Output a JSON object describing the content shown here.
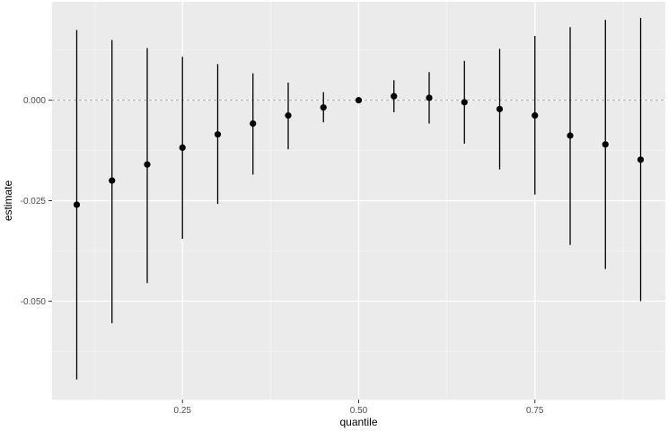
{
  "chart_data": {
    "type": "scatter",
    "subtype": "pointrange",
    "title": "",
    "xlabel": "quantile",
    "ylabel": "estimate",
    "xlim": [
      0.065,
      0.935
    ],
    "ylim": [
      -0.0745,
      0.0245
    ],
    "x_ticks": [
      0.25,
      0.5,
      0.75
    ],
    "x_tick_labels": [
      "0.25",
      "0.50",
      "0.75"
    ],
    "y_ticks": [
      -0.05,
      -0.025,
      0.0
    ],
    "y_tick_labels": [
      "-0.050",
      "-0.025",
      "0.000"
    ],
    "reference_line": {
      "y": 0.0,
      "style": "dashed",
      "color": "#a6a6a6"
    },
    "grid": true,
    "panel_background": "#ebebeb",
    "point_color": "#000000",
    "points": [
      {
        "x": 0.1,
        "y": -0.026,
        "ymin": -0.0695,
        "ymax": 0.0175
      },
      {
        "x": 0.15,
        "y": -0.02,
        "ymin": -0.0555,
        "ymax": 0.015
      },
      {
        "x": 0.2,
        "y": -0.016,
        "ymin": -0.0455,
        "ymax": 0.013
      },
      {
        "x": 0.25,
        "y": -0.0118,
        "ymin": -0.0345,
        "ymax": 0.0108
      },
      {
        "x": 0.3,
        "y": -0.0085,
        "ymin": -0.0258,
        "ymax": 0.009
      },
      {
        "x": 0.35,
        "y": -0.0058,
        "ymin": -0.0185,
        "ymax": 0.0067
      },
      {
        "x": 0.4,
        "y": -0.0038,
        "ymin": -0.0122,
        "ymax": 0.0044
      },
      {
        "x": 0.45,
        "y": -0.0018,
        "ymin": -0.0055,
        "ymax": 0.002
      },
      {
        "x": 0.5,
        "y": 0.0,
        "ymin": -0.0005,
        "ymax": 0.0005
      },
      {
        "x": 0.55,
        "y": 0.001,
        "ymin": -0.003,
        "ymax": 0.005
      },
      {
        "x": 0.6,
        "y": 0.0006,
        "ymin": -0.0058,
        "ymax": 0.007
      },
      {
        "x": 0.65,
        "y": -0.0005,
        "ymin": -0.0108,
        "ymax": 0.0098
      },
      {
        "x": 0.7,
        "y": -0.0022,
        "ymin": -0.0172,
        "ymax": 0.0128
      },
      {
        "x": 0.75,
        "y": -0.0038,
        "ymin": -0.0235,
        "ymax": 0.016
      },
      {
        "x": 0.8,
        "y": -0.0088,
        "ymin": -0.036,
        "ymax": 0.0182
      },
      {
        "x": 0.85,
        "y": -0.011,
        "ymin": -0.042,
        "ymax": 0.02
      },
      {
        "x": 0.9,
        "y": -0.0148,
        "ymin": -0.05,
        "ymax": 0.0205
      }
    ]
  }
}
